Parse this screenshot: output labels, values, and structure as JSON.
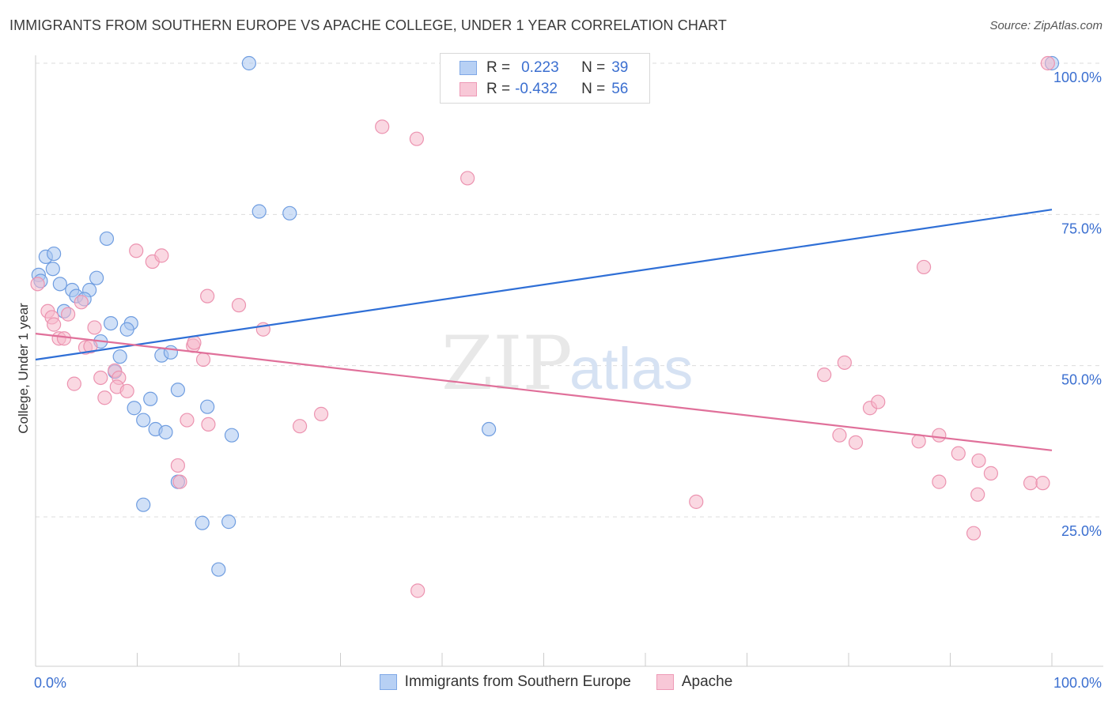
{
  "title": "IMMIGRANTS FROM SOUTHERN EUROPE VS APACHE COLLEGE, UNDER 1 YEAR CORRELATION CHART",
  "source": "Source: ZipAtlas.com",
  "watermark": {
    "zip": "ZIP",
    "atlas": "atlas"
  },
  "legend_top": {
    "rows": [
      {
        "r_label": "R =",
        "r_value": "0.223",
        "n_label": "N =",
        "n_value": "39"
      },
      {
        "r_label": "R =",
        "r_value": "-0.432",
        "n_label": "N =",
        "n_value": "56"
      }
    ]
  },
  "legend_bottom": {
    "items": [
      "Immigrants from Southern Europe",
      "Apache"
    ]
  },
  "colors": {
    "blue_fill": "#a9c6f0",
    "blue_stroke": "#6f9de0",
    "blue_line": "#2f6fd6",
    "pink_fill": "#f6b8cb",
    "pink_stroke": "#ec93b0",
    "pink_line": "#e0709a",
    "tick_label": "#3b6fd0",
    "grid": "#dcdcdc"
  },
  "chart_data": {
    "type": "scatter",
    "title": "IMMIGRANTS FROM SOUTHERN EUROPE VS APACHE COLLEGE, UNDER 1 YEAR CORRELATION CHART",
    "xlabel": "",
    "ylabel": "College, Under 1 year",
    "xlim": [
      0,
      100
    ],
    "ylim": [
      0,
      105
    ],
    "x_tick_labels": [
      "0.0%",
      "100.0%"
    ],
    "y_tick_labels": [
      "100.0%",
      "75.0%",
      "50.0%",
      "25.0%"
    ],
    "y_ticks": [
      100,
      75,
      50,
      25
    ],
    "series": [
      {
        "name": "Immigrants from Southern Europe",
        "r": 0.223,
        "n": 39,
        "trend": {
          "x0": 0,
          "y0": 51.0,
          "x1": 100,
          "y1": 75.8
        },
        "points": [
          [
            21,
            100
          ],
          [
            100,
            100
          ],
          [
            22,
            75.5
          ],
          [
            25,
            75.2
          ],
          [
            7,
            71
          ],
          [
            1,
            68
          ],
          [
            1.8,
            68.5
          ],
          [
            1.7,
            66
          ],
          [
            2.4,
            63.5
          ],
          [
            3.6,
            62.5
          ],
          [
            4,
            61.5
          ],
          [
            5.3,
            62.5
          ],
          [
            6,
            64.5
          ],
          [
            4.8,
            61
          ],
          [
            2.8,
            59
          ],
          [
            7.4,
            57
          ],
          [
            9.4,
            57
          ],
          [
            9,
            56
          ],
          [
            6.4,
            54
          ],
          [
            8.3,
            51.5
          ],
          [
            12.4,
            51.7
          ],
          [
            13.3,
            52.2
          ],
          [
            7.8,
            49
          ],
          [
            14,
            46
          ],
          [
            11.3,
            44.5
          ],
          [
            9.7,
            43
          ],
          [
            10.6,
            41
          ],
          [
            16.9,
            43.2
          ],
          [
            11.8,
            39.5
          ],
          [
            12.8,
            39
          ],
          [
            19.3,
            38.5
          ],
          [
            44.6,
            39.5
          ],
          [
            14,
            30.8
          ],
          [
            10.6,
            27
          ],
          [
            16.4,
            24
          ],
          [
            19,
            24.2
          ],
          [
            18,
            16.3
          ],
          [
            0.3,
            65
          ],
          [
            0.5,
            64
          ]
        ]
      },
      {
        "name": "Apache",
        "r": -0.432,
        "n": 56,
        "trend": {
          "x0": 0,
          "y0": 55.3,
          "x1": 100,
          "y1": 36.0
        },
        "points": [
          [
            34.1,
            89.5
          ],
          [
            37.5,
            87.5
          ],
          [
            42.5,
            81
          ],
          [
            99.6,
            100
          ],
          [
            9.9,
            69
          ],
          [
            11.5,
            67.2
          ],
          [
            12.4,
            68.2
          ],
          [
            87.4,
            66.3
          ],
          [
            0.2,
            63.5
          ],
          [
            16.9,
            61.5
          ],
          [
            20,
            60
          ],
          [
            4.5,
            60.5
          ],
          [
            1.2,
            59
          ],
          [
            3.2,
            58.5
          ],
          [
            1.6,
            58
          ],
          [
            1.8,
            56.8
          ],
          [
            5.8,
            56.3
          ],
          [
            22.4,
            56
          ],
          [
            2.3,
            54.5
          ],
          [
            2.8,
            54.5
          ],
          [
            4.9,
            53
          ],
          [
            5.4,
            53.2
          ],
          [
            15.5,
            53.3
          ],
          [
            15.6,
            53.8
          ],
          [
            16.5,
            51
          ],
          [
            7.8,
            49.2
          ],
          [
            8.2,
            48
          ],
          [
            6.4,
            48
          ],
          [
            77.6,
            48.5
          ],
          [
            79.6,
            50.5
          ],
          [
            3.8,
            47
          ],
          [
            8,
            46.5
          ],
          [
            9,
            45.8
          ],
          [
            6.8,
            44.7
          ],
          [
            82.1,
            43
          ],
          [
            82.9,
            44
          ],
          [
            14.9,
            41
          ],
          [
            17,
            40.3
          ],
          [
            26,
            40
          ],
          [
            28.1,
            42
          ],
          [
            79.1,
            38.5
          ],
          [
            80.7,
            37.3
          ],
          [
            86.9,
            37.5
          ],
          [
            88.9,
            38.5
          ],
          [
            90.8,
            35.5
          ],
          [
            92.8,
            34.3
          ],
          [
            94,
            32.2
          ],
          [
            14,
            33.5
          ],
          [
            14.2,
            30.8
          ],
          [
            88.9,
            30.8
          ],
          [
            97.9,
            30.6
          ],
          [
            99.1,
            30.6
          ],
          [
            65,
            27.5
          ],
          [
            92.7,
            28.7
          ],
          [
            92.3,
            22.3
          ],
          [
            37.6,
            12.8
          ]
        ]
      }
    ]
  },
  "trend_lines": [
    "blue",
    "pink"
  ],
  "_note": "Chart sized to fit the full 1406x892 page"
}
